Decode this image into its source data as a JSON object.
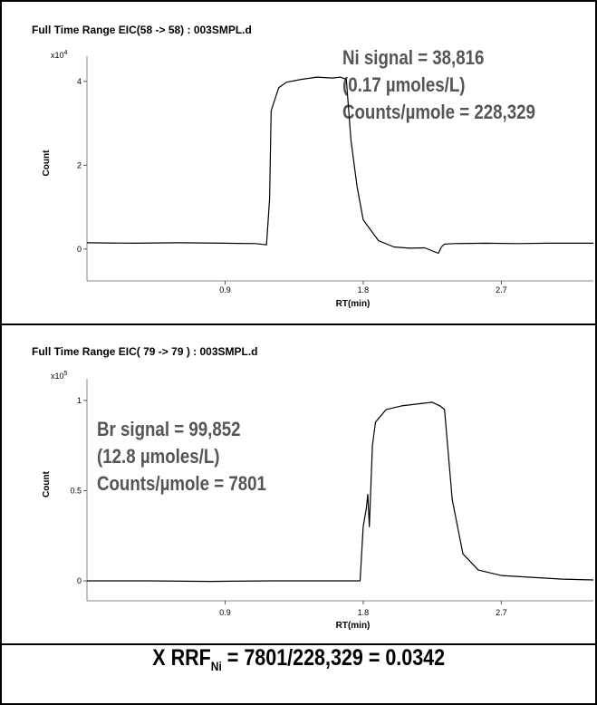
{
  "chart_data": [
    {
      "type": "line",
      "title": "Full Time Range EIC(58 -> 58) : 003SMPL.d",
      "xlabel": "RT(min)",
      "ylabel": "Count",
      "y_multiplier": "x10",
      "y_multiplier_exp": "4",
      "x_ticks": [
        "0.9",
        "1.8",
        "2.7"
      ],
      "y_ticks": [
        "0",
        "2",
        "4"
      ],
      "xlim": [
        0.0,
        3.3
      ],
      "ylim": [
        -0.5,
        4.6
      ],
      "annotations": [
        "Ni signal = 38,816",
        "(0.17 µmoles/L)",
        "Counts/µmole = 228,329"
      ],
      "x": [
        0.0,
        0.3,
        0.6,
        0.9,
        1.1,
        1.17,
        1.19,
        1.2,
        1.25,
        1.3,
        1.4,
        1.5,
        1.6,
        1.65,
        1.69,
        1.72,
        1.76,
        1.8,
        1.9,
        2.0,
        2.1,
        2.2,
        2.29,
        2.31,
        2.33,
        2.4,
        2.6,
        2.8,
        3.0,
        3.3
      ],
      "y": [
        0.15,
        0.14,
        0.15,
        0.14,
        0.13,
        0.1,
        1.2,
        3.3,
        3.85,
        3.98,
        4.05,
        4.1,
        4.08,
        4.1,
        4.05,
        2.6,
        1.5,
        0.7,
        0.2,
        0.05,
        0.02,
        0.03,
        -0.1,
        0.05,
        0.12,
        0.13,
        0.14,
        0.13,
        0.14,
        0.14
      ]
    },
    {
      "type": "line",
      "title": "Full Time Range EIC( 79 -> 79 ) : 003SMPL.d",
      "xlabel": "RT(min)",
      "ylabel": "Count",
      "y_multiplier": "x10",
      "y_multiplier_exp": "5",
      "x_ticks": [
        "0.9",
        "1.8",
        "2.7"
      ],
      "y_ticks": [
        "0",
        "0.5",
        "1"
      ],
      "xlim": [
        0.0,
        3.3
      ],
      "ylim": [
        -0.05,
        1.12
      ],
      "annotations": [
        "Br signal = 99,852",
        "(12.8 µmoles/L)",
        "Counts/µmole = 7801"
      ],
      "x": [
        0.0,
        0.4,
        0.8,
        1.2,
        1.6,
        1.78,
        1.8,
        1.82,
        1.83,
        1.84,
        1.86,
        1.88,
        1.95,
        2.05,
        2.15,
        2.25,
        2.3,
        2.33,
        2.38,
        2.45,
        2.55,
        2.7,
        2.9,
        3.1,
        3.3
      ],
      "y": [
        0.0,
        0.0,
        -0.003,
        0.0,
        0.0,
        0.0,
        0.3,
        0.4,
        0.48,
        0.3,
        0.75,
        0.88,
        0.95,
        0.97,
        0.98,
        0.99,
        0.97,
        0.95,
        0.45,
        0.15,
        0.06,
        0.03,
        0.02,
        0.01,
        0.005
      ]
    }
  ],
  "footer": {
    "formula_prefix": "X RRF",
    "formula_sub": "Ni",
    "formula_suffix": " = 7801/228,329 = 0.0342"
  }
}
